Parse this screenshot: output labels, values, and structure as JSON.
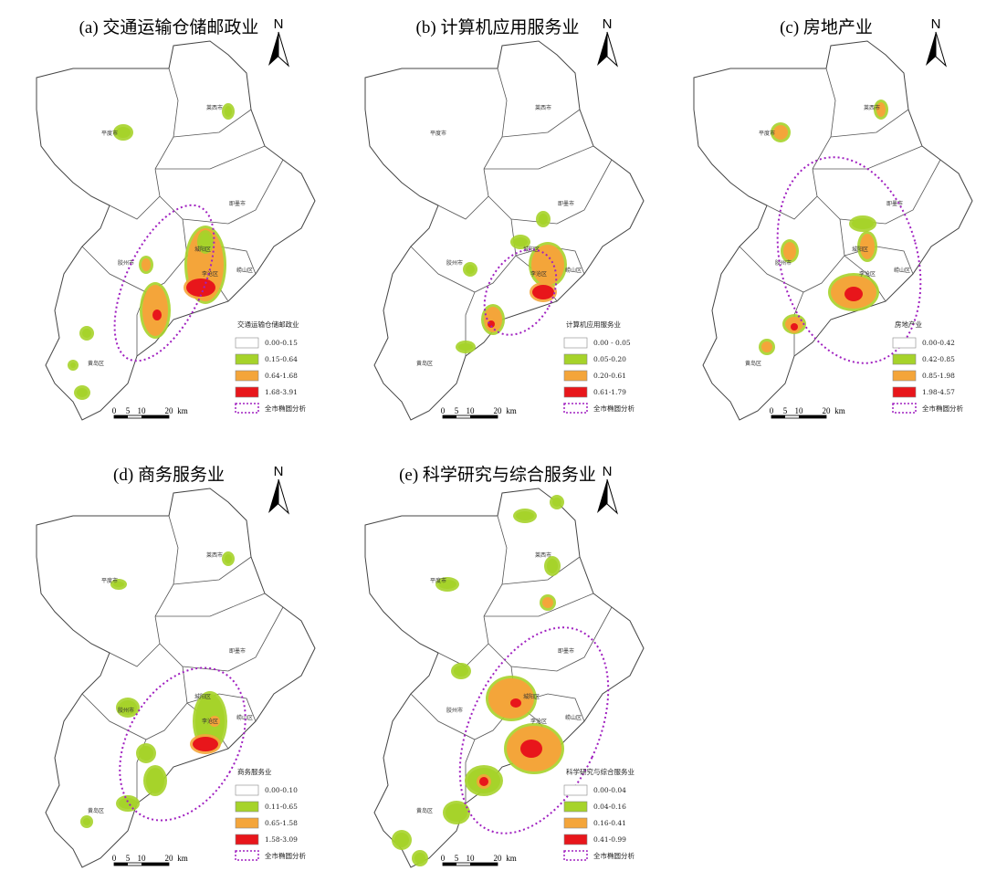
{
  "figure": {
    "panels": [
      {
        "title": "(a) 交通运输仓储邮政业",
        "north": "N",
        "legend": {
          "title": "交通运输仓储邮政业",
          "items": [
            "0.00-0.15",
            "0.15-0.64",
            "0.64-1.68",
            "1.68-3.91"
          ],
          "ellipse": "全市椭圆分析"
        },
        "scale": [
          "0",
          "5",
          "10",
          "20",
          "km"
        ],
        "places": [
          "平度市",
          "莱西市",
          "即墨市",
          "胶州市",
          "城阳区",
          "崂山区",
          "李沧区",
          "黄岛区"
        ]
      },
      {
        "title": "(b) 计算机应用服务业",
        "north": "N",
        "legend": {
          "title": "计算机应用服务业",
          "items": [
            "0.00 - 0.05",
            "0.05-0.20",
            "0.20-0.61",
            "0.61-1.79"
          ],
          "ellipse": "全市椭圆分析"
        },
        "scale": [
          "0",
          "5",
          "10",
          "20",
          "km"
        ],
        "places": [
          "平度市",
          "莱西市",
          "即墨市",
          "胶州市",
          "城阳区",
          "崂山区",
          "李沧区",
          "黄岛区"
        ]
      },
      {
        "title": "(c) 房地产业",
        "north": "N",
        "legend": {
          "title": "房地产业",
          "items": [
            "0.00-0.42",
            "0.42-0.85",
            "0.85-1.98",
            "1.98-4.57"
          ],
          "ellipse": "全市椭圆分析"
        },
        "scale": [
          "0",
          "5",
          "10",
          "20",
          "km"
        ],
        "places": [
          "平度市",
          "莱西市",
          "即墨市",
          "胶州市",
          "城阳区",
          "崂山区",
          "李沧区",
          "黄岛区"
        ]
      },
      {
        "title": "(d) 商务服务业",
        "north": "N",
        "legend": {
          "title": "商务服务业",
          "items": [
            "0.00-0.10",
            "0.11-0.65",
            "0.65-1.58",
            "1.58-3.09"
          ],
          "ellipse": "全市椭圆分析"
        },
        "scale": [
          "0",
          "5",
          "10",
          "20",
          "km"
        ],
        "places": [
          "平度市",
          "莱西市",
          "即墨市",
          "胶州市",
          "城阳区",
          "崂山区",
          "李沧区",
          "黄岛区"
        ]
      },
      {
        "title": "(e) 科学研究与综合服务业",
        "north": "N",
        "legend": {
          "title": "科学研究与综合服务业",
          "items": [
            "0.00-0.04",
            "0.04-0.16",
            "0.16-0.41",
            "0.41-0.99"
          ],
          "ellipse": "全市椭圆分析"
        },
        "scale": [
          "0",
          "5",
          "10",
          "20",
          "km"
        ],
        "places": [
          "平度市",
          "莱西市",
          "即墨市",
          "胶州市",
          "城阳区",
          "崂山区",
          "李沧区",
          "黄岛区"
        ]
      }
    ]
  }
}
